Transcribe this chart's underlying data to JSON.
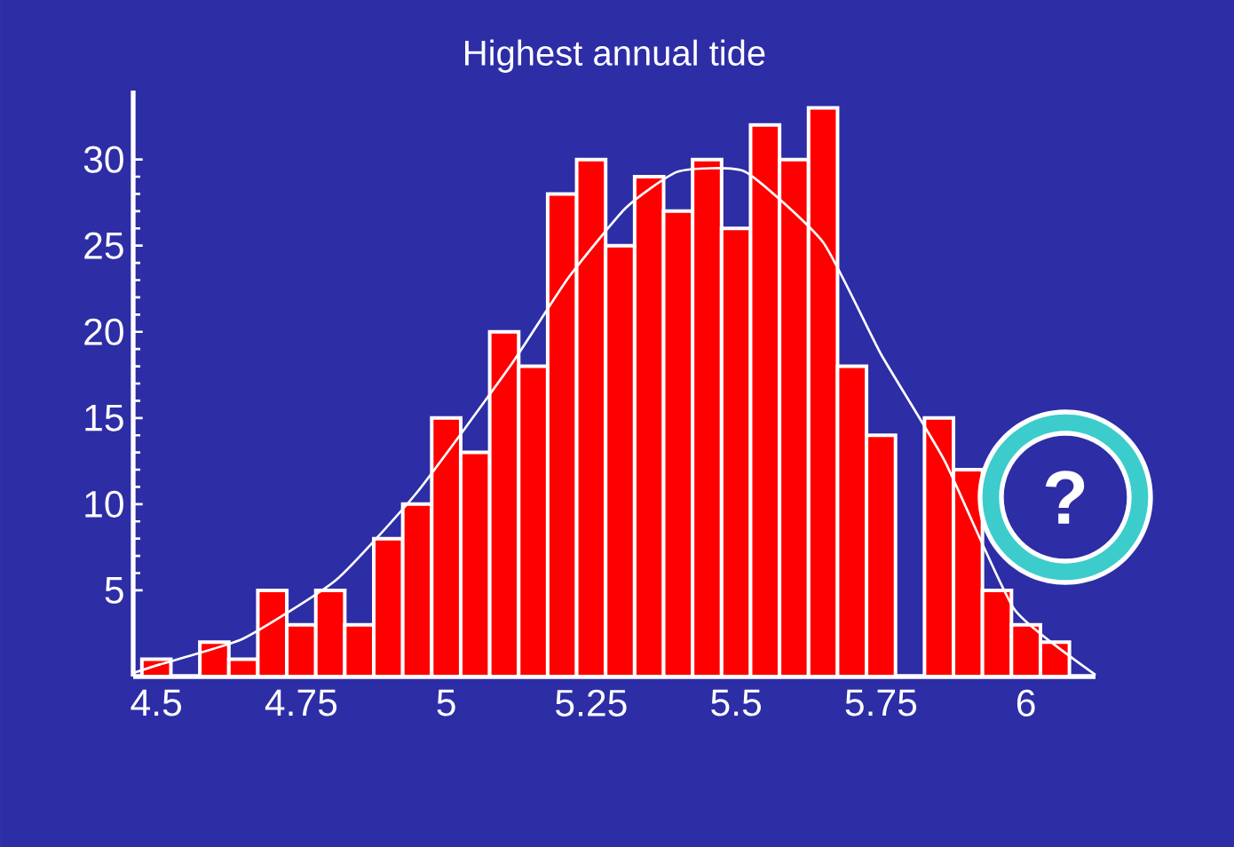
{
  "chart_data": {
    "type": "histogram",
    "title": "Highest annual tide",
    "bins": [
      4.475,
      4.525,
      4.575,
      4.625,
      4.675,
      4.725,
      4.775,
      4.825,
      4.875,
      4.925,
      4.975,
      5.025,
      5.075,
      5.125,
      5.175,
      5.225,
      5.275,
      5.325,
      5.375,
      5.425,
      5.475,
      5.525,
      5.575,
      5.625,
      5.675,
      5.725,
      5.775,
      5.825,
      5.875,
      5.925,
      5.975,
      6.025,
      6.075
    ],
    "values": [
      1,
      0,
      2,
      1,
      5,
      3,
      5,
      3,
      8,
      10,
      15,
      13,
      20,
      18,
      28,
      30,
      25,
      29,
      27,
      30,
      26,
      32,
      30,
      33,
      18,
      14,
      null,
      15,
      12,
      5,
      3,
      2
    ],
    "color": "#ff0000",
    "series": [
      {
        "type": "line",
        "color": "#ffffff",
        "x": [
          4.46,
          4.506,
          4.65,
          4.81,
          4.95,
          5.11,
          5.21,
          5.31,
          5.4,
          5.515,
          5.65,
          5.75,
          5.86,
          5.98,
          6.12
        ],
        "values": [
          0.2,
          0.7,
          2.2,
          5.6,
          10.7,
          18,
          23.1,
          27.2,
          29.3,
          29.3,
          25.2,
          18.7,
          12.5,
          3.9,
          0.1
        ]
      }
    ],
    "xlim": [
      4.46,
      6.12
    ],
    "ylim": [
      0,
      34
    ],
    "xticks": [
      4.5,
      4.75,
      5,
      5.25,
      5.5,
      5.75,
      6
    ],
    "yticks": [
      5,
      10,
      15,
      20,
      25,
      30
    ],
    "annotations": [
      "?"
    ]
  }
}
